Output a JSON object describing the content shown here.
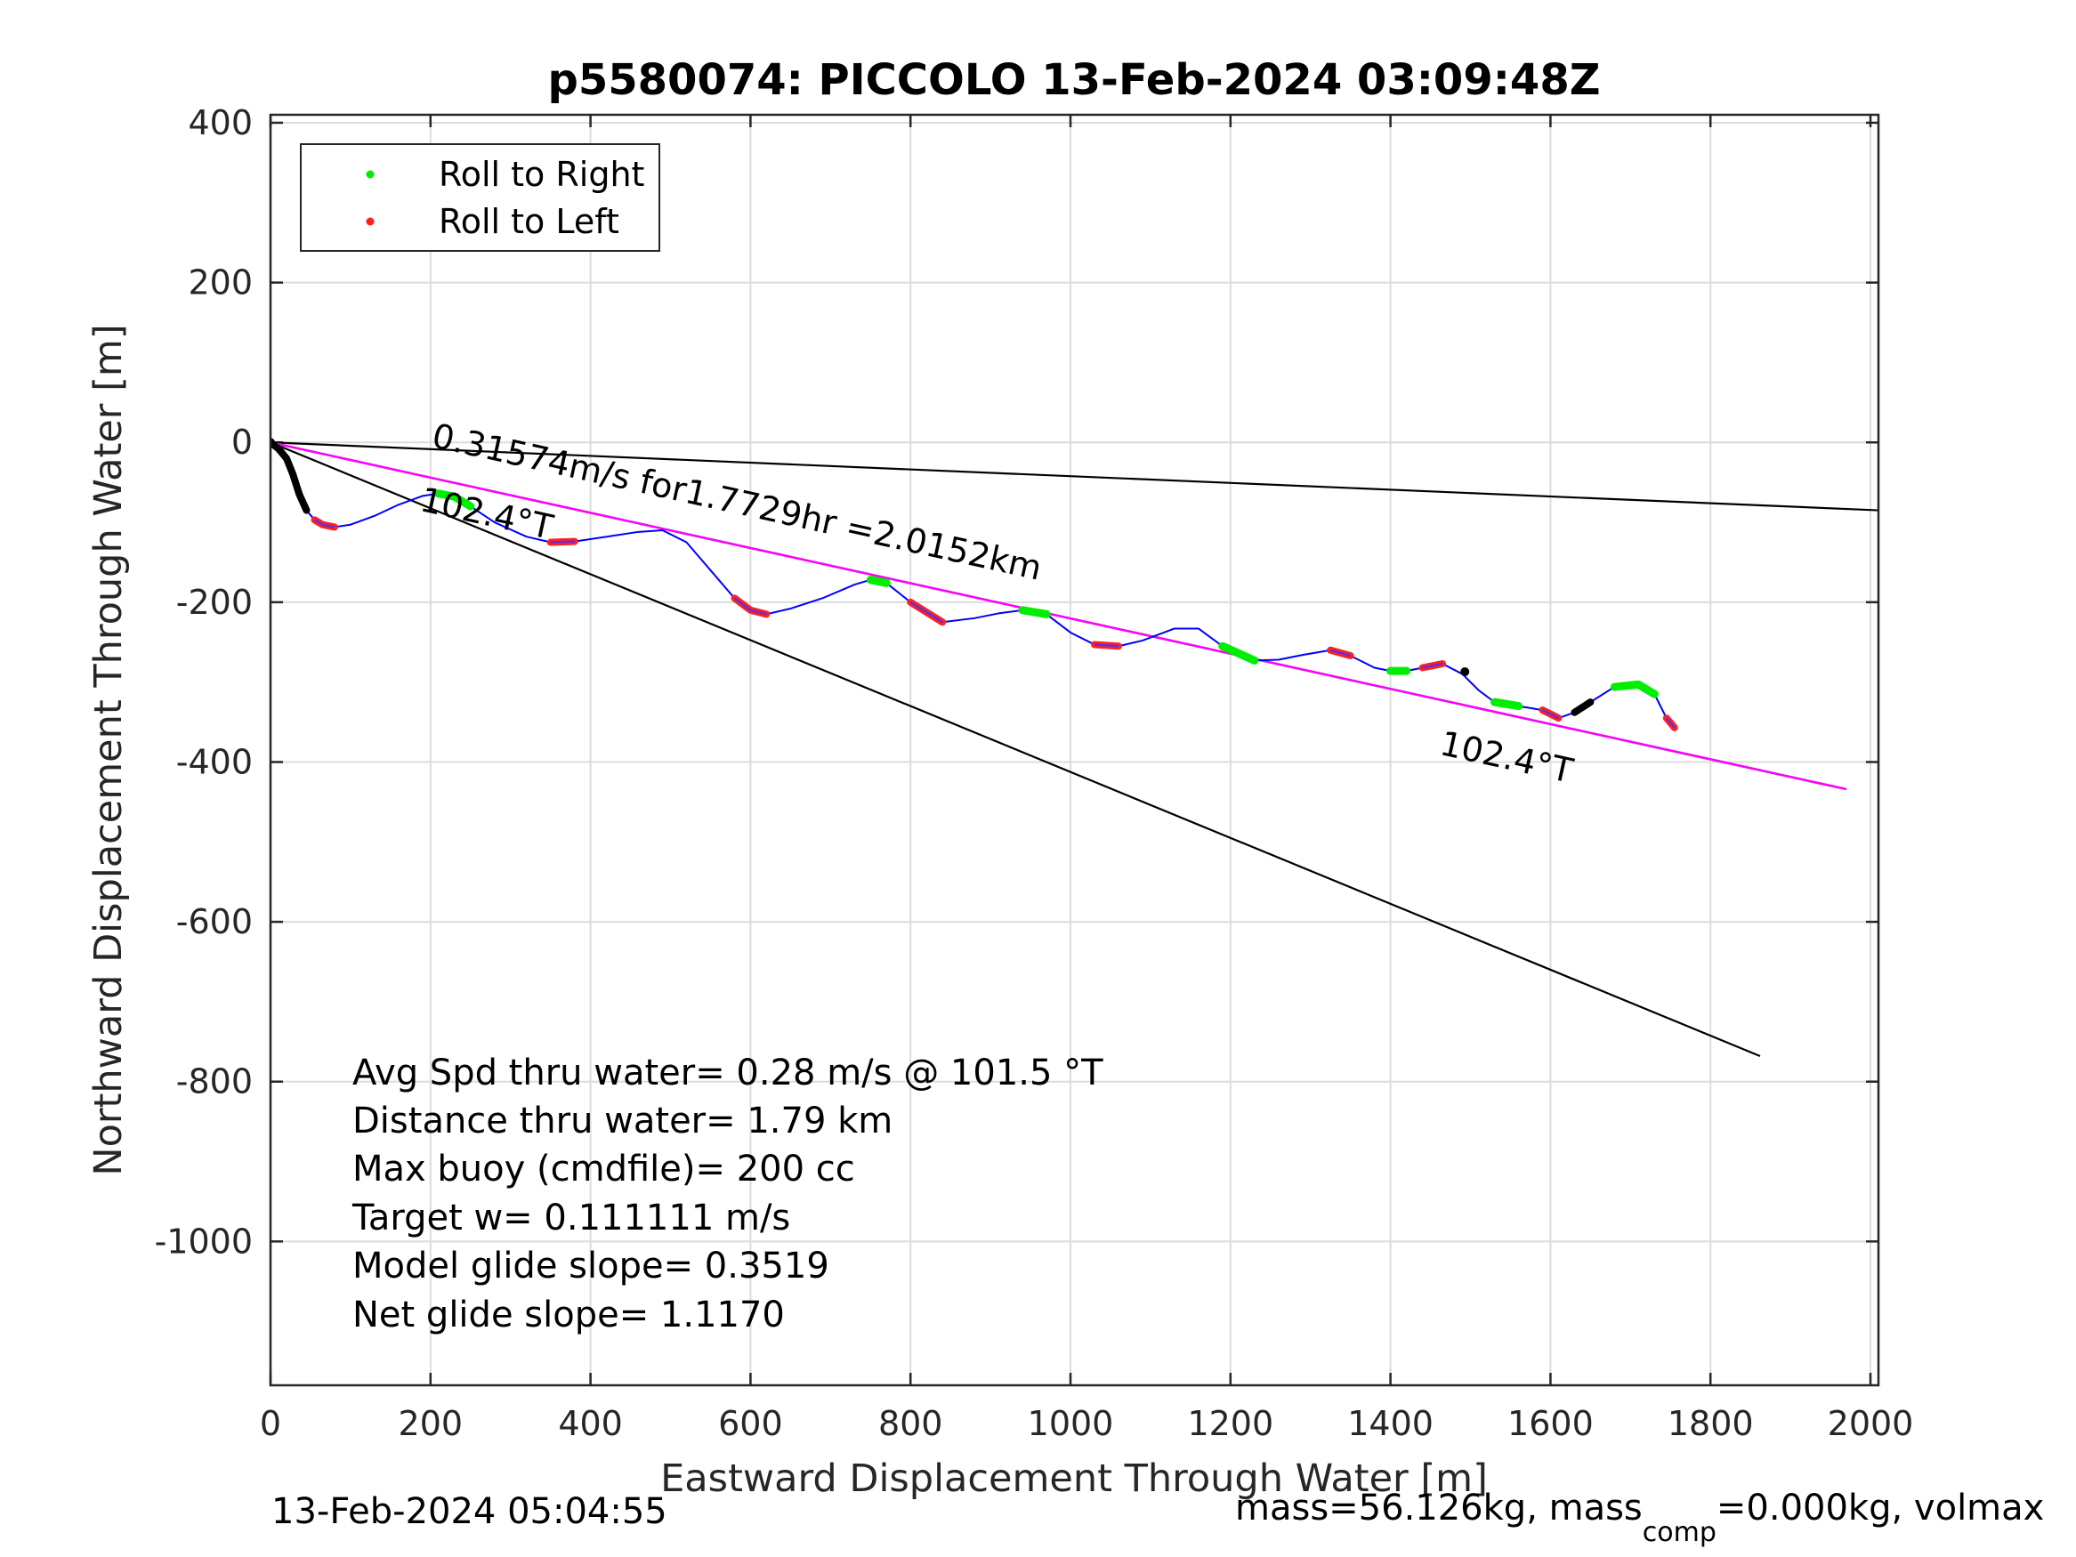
{
  "chart_data": {
    "type": "scatter",
    "title": "p5580074: PICCOLO 13-Feb-2024 03:09:48Z",
    "xlabel": "Eastward Displacement Through Water [m]",
    "ylabel": "Northward Displacement Through Water [m]",
    "xlim": [
      0,
      2010
    ],
    "ylim": [
      -1180,
      410
    ],
    "xticks": [
      0,
      200,
      400,
      600,
      800,
      1000,
      1200,
      1400,
      1600,
      1800,
      2000
    ],
    "yticks": [
      400,
      200,
      0,
      -200,
      -400,
      -600,
      -800,
      -1000
    ],
    "grid": true,
    "legend": {
      "placement": "top-left",
      "entries": [
        {
          "label": "Roll to Right",
          "color": "#00ee00"
        },
        {
          "label": "Roll to Left",
          "color": "#ff2020"
        }
      ]
    },
    "colors": {
      "track": "#0000ff",
      "mean_line": "#ff00ff",
      "heading_lines": "#000000",
      "roll_right": "#00ee00",
      "roll_left": "#ff2020",
      "no_roll": "#000000"
    },
    "lines": [
      {
        "role": "heading-upper",
        "x": [
          0,
          2010
        ],
        "y": [
          0,
          -85
        ]
      },
      {
        "role": "heading-lower",
        "x": [
          0,
          1862
        ],
        "y": [
          0,
          -768
        ]
      },
      {
        "role": "heading-102.4T",
        "x": [
          0,
          1960
        ],
        "y": [
          0,
          -432
        ]
      },
      {
        "role": "mean-velocity",
        "x": [
          0,
          1970
        ],
        "y": [
          0,
          -434
        ]
      }
    ],
    "track": {
      "x": [
        0,
        10,
        20,
        28,
        36,
        45,
        55,
        65,
        80,
        100,
        130,
        160,
        190,
        210,
        230,
        250,
        280,
        320,
        350,
        380,
        420,
        460,
        490,
        520,
        550,
        580,
        600,
        620,
        650,
        690,
        730,
        750,
        770,
        800,
        840,
        880,
        910,
        940,
        970,
        1000,
        1030,
        1060,
        1090,
        1130,
        1160,
        1190,
        1230,
        1260,
        1290,
        1325,
        1350,
        1380,
        1400,
        1420,
        1440,
        1465,
        1490,
        1510,
        1530,
        1560,
        1590,
        1610,
        1630,
        1650,
        1680,
        1710,
        1730,
        1745,
        1755
      ],
      "y": [
        0,
        -8,
        -20,
        -40,
        -65,
        -85,
        -97,
        -103,
        -106,
        -103,
        -92,
        -78,
        -67,
        -64,
        -68,
        -80,
        -100,
        -118,
        -125,
        -124,
        -118,
        -112,
        -110,
        -125,
        -160,
        -195,
        -210,
        -215,
        -208,
        -195,
        -178,
        -172,
        -176,
        -200,
        -225,
        -220,
        -214,
        -210,
        -215,
        -238,
        -253,
        -255,
        -248,
        -233,
        -233,
        -255,
        -273,
        -272,
        -266,
        -260,
        -267,
        -282,
        -286,
        -286,
        -282,
        -277,
        -290,
        -310,
        -325,
        -330,
        -335,
        -345,
        -338,
        -325,
        -306,
        -303,
        -315,
        -345,
        -357
      ]
    },
    "roll_right_segments": [
      [
        13,
        14,
        15
      ],
      [
        31,
        32
      ],
      [
        37,
        38
      ],
      [
        45,
        46
      ],
      [
        52,
        53
      ],
      [
        58,
        59
      ],
      [
        64,
        65,
        66
      ]
    ],
    "roll_left_segments": [
      [
        6,
        7,
        8
      ],
      [
        18,
        19
      ],
      [
        25,
        26,
        27
      ],
      [
        33,
        34
      ],
      [
        40,
        41
      ],
      [
        49,
        50
      ],
      [
        54,
        55
      ],
      [
        60,
        61
      ],
      [
        67,
        68
      ]
    ],
    "no_roll_segments": [
      [
        0,
        1,
        2,
        3,
        4,
        5
      ],
      [
        62,
        63
      ]
    ],
    "annotations": [
      {
        "text": "0.31574m/s for1.7729hr =2.0152km",
        "x": 200,
        "y": -5,
        "angle_deg": 12.4
      },
      {
        "text": "102.4°T",
        "x": 185,
        "y": -85,
        "angle_deg": 12.4
      },
      {
        "text": "102.4°T",
        "x": 1460,
        "y": -390,
        "angle_deg": 12.4
      }
    ],
    "stats": [
      "Avg Spd thru water=  0.28 m/s @ 101.5 °T",
      "Distance thru water=  1.79 km",
      "Max buoy (cmdfile)= 200 cc",
      "Target w= 0.111111 m/s",
      "Model glide slope= 0.3519",
      "Net glide slope= 1.1170"
    ]
  },
  "footer": {
    "timestamp": "13-Feb-2024 05:04:55",
    "mass_prefix": "mass=56.126kg, mass",
    "mass_sub": "comp",
    "mass_suffix": "=0.000kg, volmax"
  }
}
